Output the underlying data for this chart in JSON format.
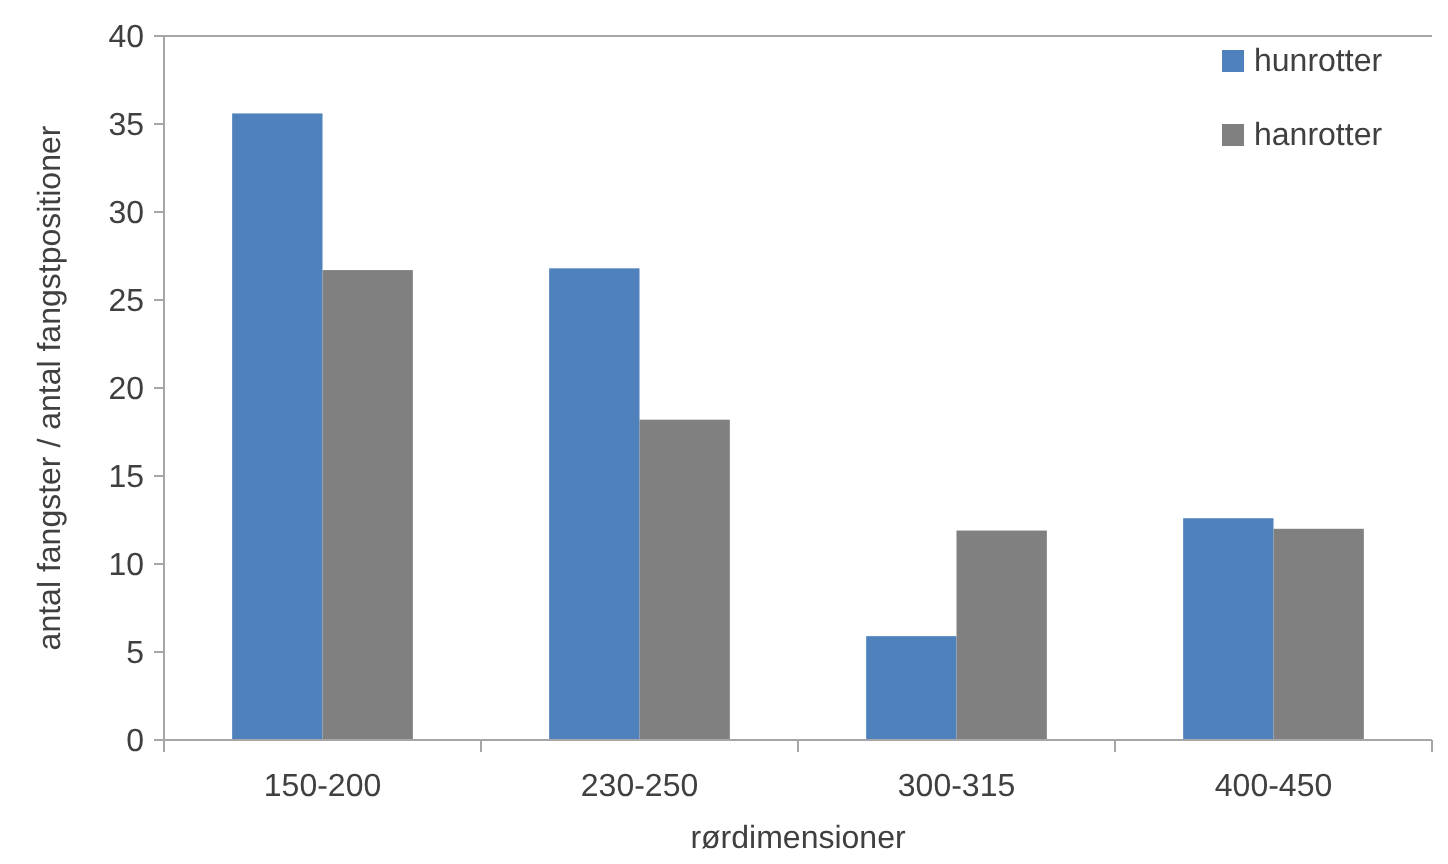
{
  "chart_data": {
    "type": "bar",
    "xlabel": "rørdimensioner",
    "ylabel": "antal fangster / antal fangstpositioner",
    "categories": [
      "150-200",
      "230-250",
      "300-315",
      "400-450"
    ],
    "series": [
      {
        "name": "hunrotter",
        "color": "#4f81bd",
        "values": [
          35.6,
          26.8,
          5.9,
          12.6
        ]
      },
      {
        "name": "hanrotter",
        "color": "#808080",
        "values": [
          26.7,
          18.2,
          11.9,
          12.0
        ]
      }
    ],
    "ylim": [
      0,
      40
    ],
    "yticks": [
      0,
      5,
      10,
      15,
      20,
      25,
      30,
      35,
      40
    ],
    "grid": false,
    "legend": "top right"
  }
}
